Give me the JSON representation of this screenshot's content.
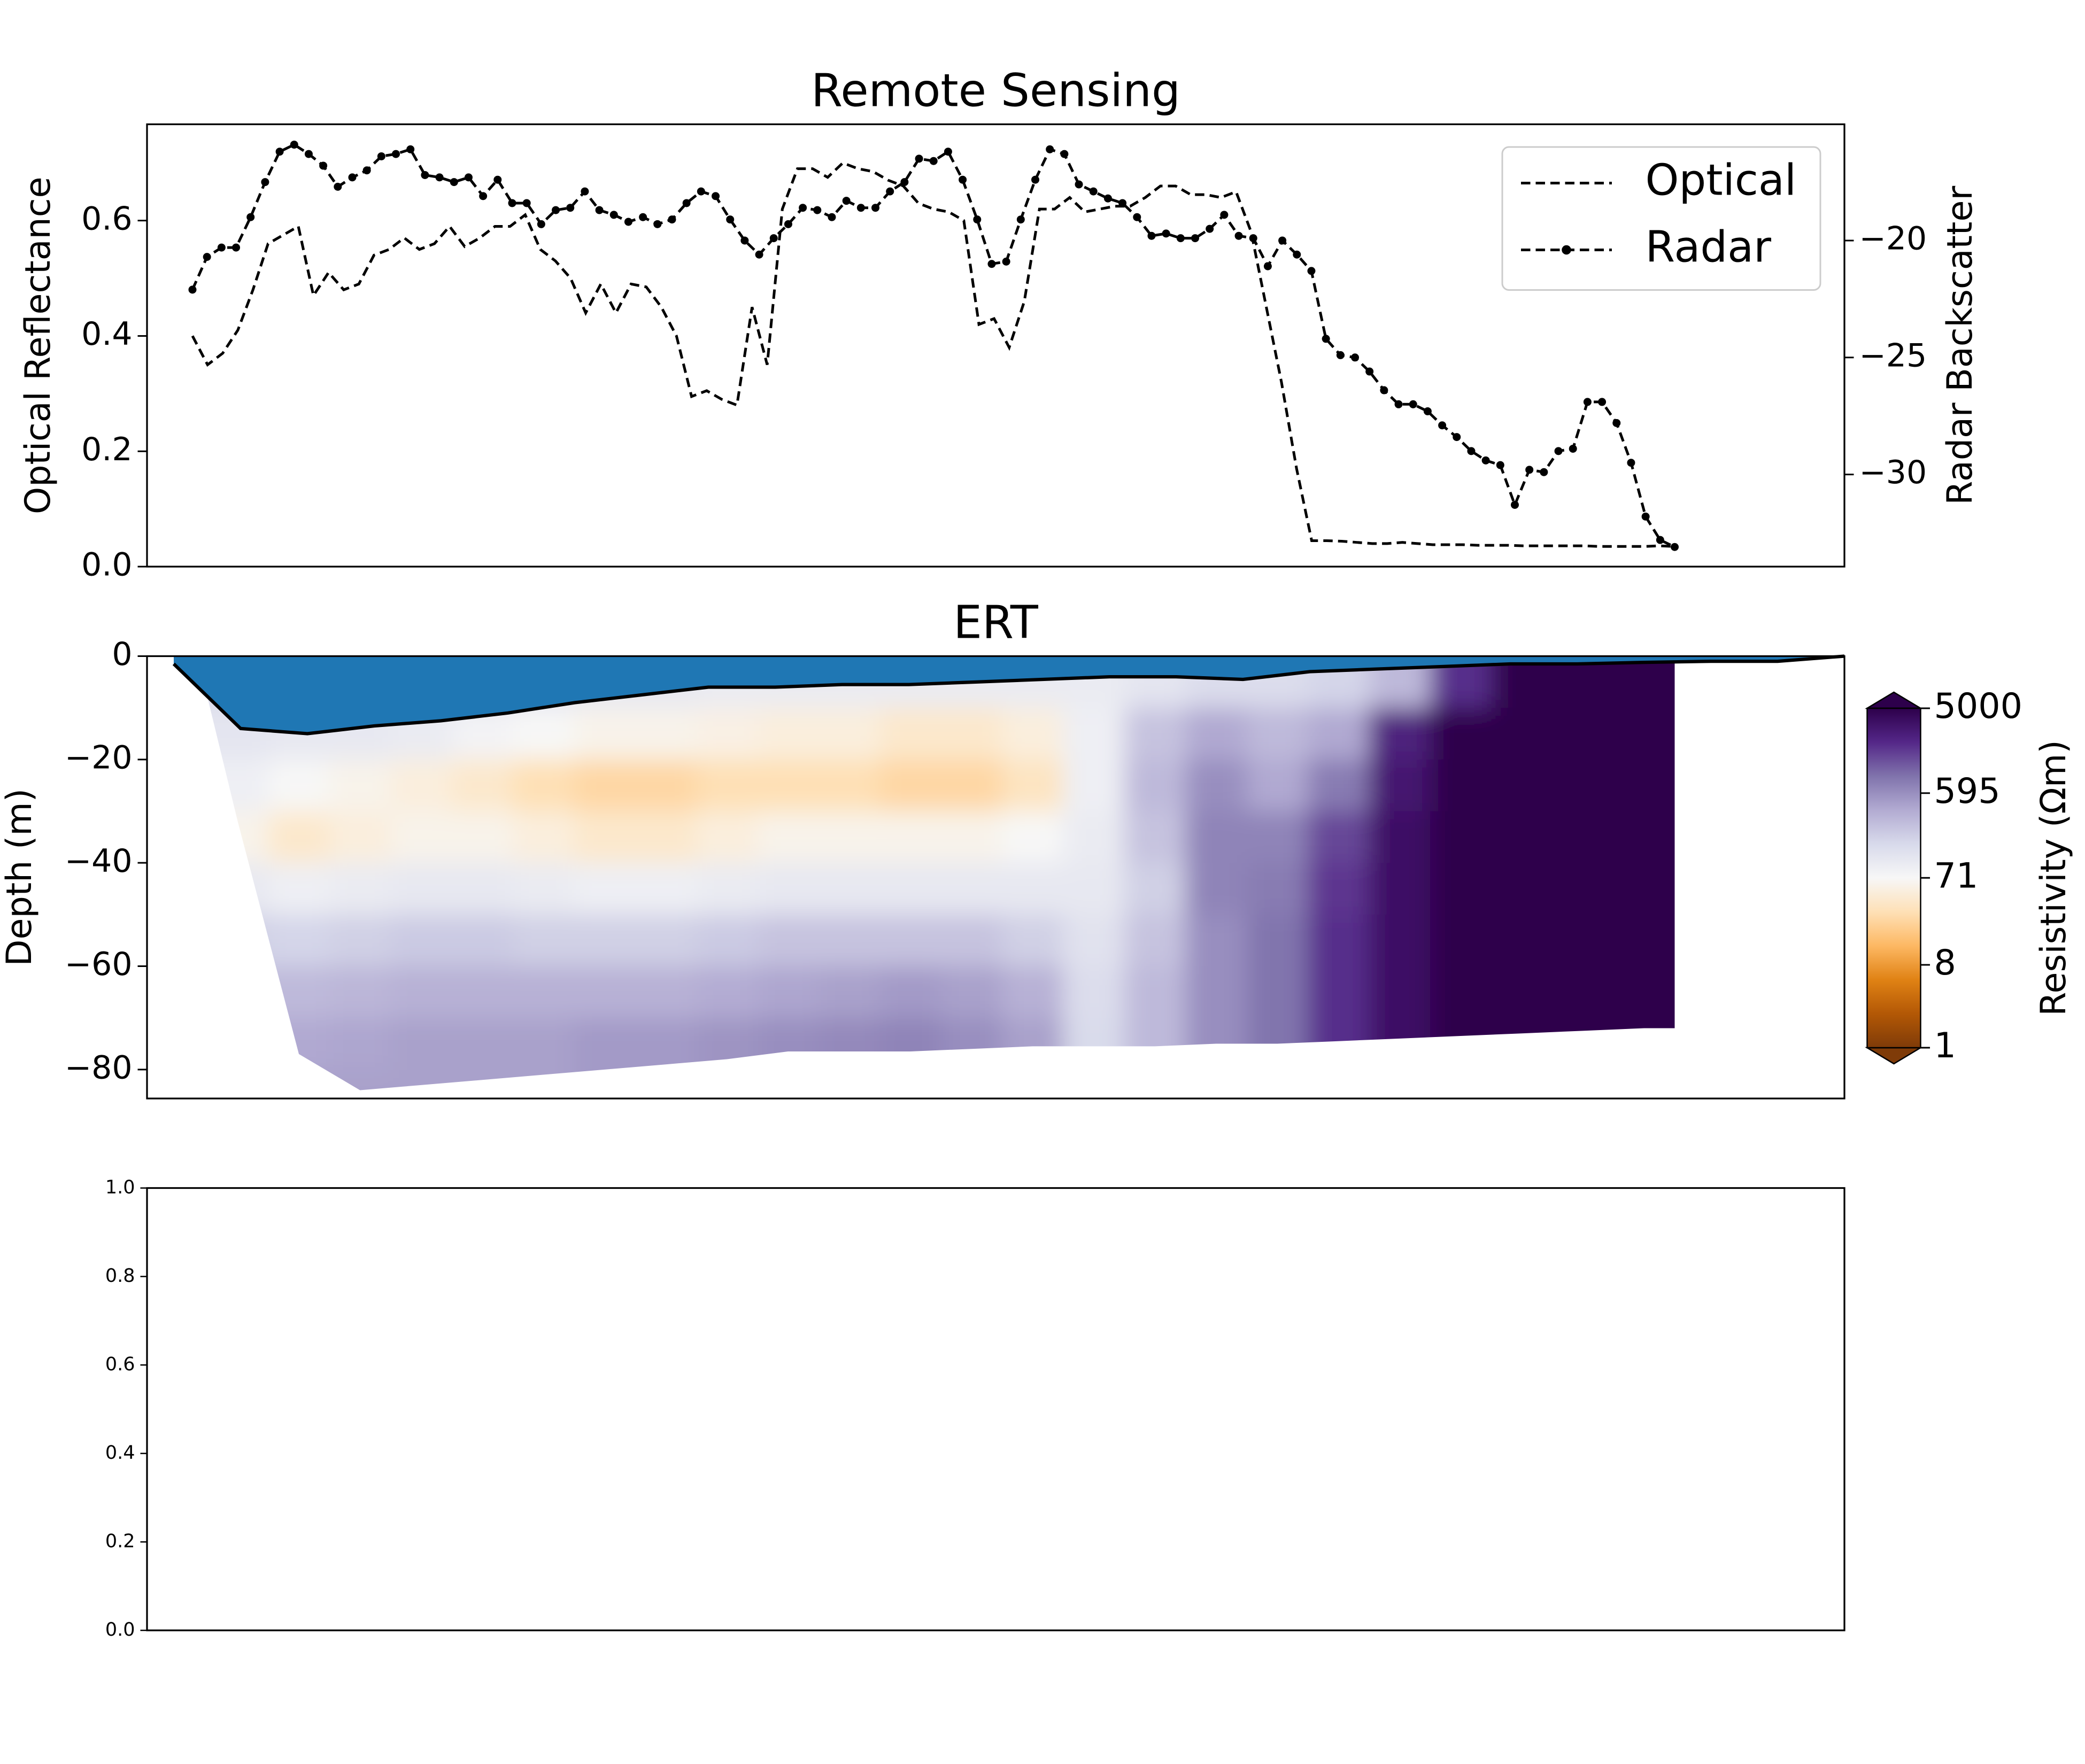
{
  "chart_data": [
    {
      "type": "line",
      "title": "Remote Sensing",
      "ylabel": "Optical Reflectance",
      "y2label": "Radar Backscatter",
      "ylim": [
        0,
        0.767
      ],
      "yticks": [
        {
          "value": 0,
          "label": "0.0"
        },
        0.2,
        0.4,
        0.6
      ],
      "y2lim": [
        -33.94,
        -15.03
      ],
      "y2ticks": [
        {
          "value": -30,
          "label": "−30"
        },
        {
          "value": -25,
          "label": "−25"
        },
        {
          "value": -20,
          "label": "−20"
        }
      ],
      "legend": "upper right",
      "series": [
        {
          "name": "Optical",
          "color": "#000000",
          "style": "dashed",
          "values": [
            0.4,
            0.35,
            0.37,
            0.41,
            0.48,
            0.56,
            0.575,
            0.59,
            0.47,
            0.51,
            0.48,
            0.49,
            0.54,
            0.55,
            0.57,
            0.55,
            0.56,
            0.59,
            0.555,
            0.57,
            0.59,
            0.59,
            0.61,
            0.55,
            0.53,
            0.5,
            0.44,
            0.49,
            0.44,
            0.49,
            0.485,
            0.45,
            0.4,
            0.295,
            0.305,
            0.29,
            0.28,
            0.45,
            0.35,
            0.62,
            0.69,
            0.69,
            0.675,
            0.7,
            0.69,
            0.685,
            0.67,
            0.66,
            0.63,
            0.62,
            0.615,
            0.6,
            0.42,
            0.43,
            0.38,
            0.46,
            0.62,
            0.62,
            0.64,
            0.615,
            0.62,
            0.625,
            0.625,
            0.64,
            0.66,
            0.66,
            0.645,
            0.645,
            0.64,
            0.65,
            0.58,
            0.45,
            0.32,
            0.17,
            0.045,
            0.045,
            0.044,
            0.042,
            0.04,
            0.04,
            0.042,
            0.04,
            0.038,
            0.038,
            0.038,
            0.037,
            0.037,
            0.037,
            0.036,
            0.036,
            0.036,
            0.036,
            0.036,
            0.035,
            0.035,
            0.035,
            0.035,
            0.036,
            0.035
          ]
        },
        {
          "name": "Radar",
          "color": "#000000",
          "style": "dashed",
          "marker": "o",
          "axis": "y2",
          "values": [
            -22.1,
            -20.7,
            -20.3,
            -20.3,
            -19.0,
            -17.5,
            -16.2,
            -15.9,
            -16.3,
            -16.8,
            -17.7,
            -17.3,
            -17.0,
            -16.4,
            -16.3,
            -16.1,
            -17.2,
            -17.3,
            -17.5,
            -17.3,
            -18.1,
            -17.4,
            -18.4,
            -18.4,
            -19.3,
            -18.7,
            -18.6,
            -17.9,
            -18.7,
            -18.9,
            -19.2,
            -19.0,
            -19.3,
            -19.1,
            -18.4,
            -17.9,
            -18.1,
            -19.1,
            -20.0,
            -20.6,
            -19.9,
            -19.3,
            -18.6,
            -18.7,
            -19.0,
            -18.3,
            -18.6,
            -18.6,
            -17.9,
            -17.5,
            -16.5,
            -16.6,
            -16.2,
            -17.4,
            -19.1,
            -21.0,
            -20.9,
            -19.1,
            -17.4,
            -16.1,
            -16.3,
            -17.6,
            -17.9,
            -18.2,
            -18.4,
            -19.0,
            -19.8,
            -19.7,
            -19.9,
            -19.9,
            -19.5,
            -18.9,
            -19.8,
            -19.9,
            -21.1,
            -20.0,
            -20.6,
            -21.3,
            -24.2,
            -24.9,
            -25.0,
            -25.6,
            -26.4,
            -27.0,
            -27.0,
            -27.3,
            -27.9,
            -28.4,
            -29.0,
            -29.4,
            -29.6,
            -31.3,
            -29.8,
            -29.9,
            -29.0,
            -28.9,
            -26.9,
            -26.9,
            -27.8,
            -29.5,
            -31.8,
            -32.8,
            -33.1
          ]
        }
      ]
    },
    {
      "type": "heatmap",
      "title": "ERT",
      "ylabel": "Depth (m)",
      "ylim": [
        -85.6,
        0
      ],
      "yticks": [
        {
          "value": -80,
          "label": "−80"
        },
        {
          "value": -60,
          "label": "−60"
        },
        {
          "value": -40,
          "label": "−40"
        },
        {
          "value": -20,
          "label": "−20"
        },
        0
      ],
      "colormap": "PuOr",
      "water_color": "#1f77b4",
      "water_depth": [
        -1.5,
        -14,
        -15,
        -13.5,
        -12.5,
        -11,
        -9,
        -7.5,
        -6,
        -6,
        -5.5,
        -5.5,
        -5,
        -4.5,
        -4,
        -4,
        -4.5,
        -3,
        -2.5,
        -2,
        -1.5,
        -1.5,
        -1.2,
        -1,
        -1,
        0
      ],
      "bottom_depth": [
        -32,
        -77,
        -84,
        -83,
        -82,
        -81,
        -80,
        -79,
        -78,
        -76.5,
        -76.5,
        -76.5,
        -76,
        -75.5,
        -75.5,
        -75.5,
        -75,
        -75,
        -74.5,
        -74,
        -73.5,
        -73,
        -72.5,
        -72
      ],
      "depth_bins": [
        0,
        -10,
        -20,
        -30,
        -40,
        -50,
        -60,
        -70,
        -80,
        -90
      ],
      "z": [
        [
          150,
          120,
          90,
          60,
          110,
          200,
          300,
          400,
          450
        ],
        [
          150,
          110,
          70,
          40,
          90,
          180,
          300,
          400,
          450
        ],
        [
          150,
          110,
          60,
          50,
          100,
          200,
          320,
          420,
          450
        ],
        [
          140,
          100,
          50,
          60,
          110,
          220,
          350,
          450,
          450
        ],
        [
          130,
          80,
          40,
          60,
          110,
          220,
          350,
          450,
          450
        ],
        [
          120,
          70,
          30,
          50,
          100,
          200,
          350,
          450,
          450
        ],
        [
          110,
          60,
          25,
          40,
          90,
          200,
          350,
          500,
          500
        ],
        [
          110,
          60,
          25,
          40,
          90,
          200,
          350,
          500,
          500
        ],
        [
          100,
          55,
          30,
          50,
          100,
          220,
          380,
          550,
          550
        ],
        [
          100,
          50,
          30,
          60,
          110,
          250,
          420,
          600,
          600
        ],
        [
          100,
          50,
          30,
          60,
          110,
          250,
          450,
          650,
          650
        ],
        [
          100,
          40,
          25,
          60,
          110,
          250,
          500,
          700,
          700
        ],
        [
          100,
          40,
          25,
          60,
          110,
          250,
          450,
          600,
          600
        ],
        [
          100,
          50,
          35,
          70,
          110,
          200,
          350,
          450,
          450
        ],
        [
          100,
          90,
          90,
          100,
          110,
          130,
          150,
          160,
          160
        ],
        [
          120,
          250,
          300,
          250,
          200,
          250,
          300,
          300,
          300
        ],
        [
          150,
          400,
          600,
          700,
          700,
          600,
          600,
          600,
          600
        ],
        [
          150,
          300,
          400,
          700,
          800,
          900,
          900,
          900,
          900
        ],
        [
          180,
          400,
          800,
          1500,
          1800,
          2000,
          2000,
          2000,
          2000
        ],
        [
          300,
          2500,
          3000,
          3500,
          3500,
          3500,
          3500,
          3500,
          3500
        ],
        [
          2000,
          5000,
          5000,
          5000,
          5000,
          5000,
          5000,
          5000,
          5000
        ],
        [
          6000,
          6000,
          6000,
          6000,
          6000,
          6000,
          6000,
          6000,
          6000
        ],
        [
          6000,
          6000,
          6000,
          6000,
          6000,
          6000,
          6000,
          6000,
          6000
        ],
        [
          6000,
          6000,
          6000,
          6000,
          6000,
          6000,
          6000,
          6000,
          6000
        ]
      ],
      "colorbar": {
        "label": "Resistivity (Ωm)",
        "lim": [
          1,
          5000
        ],
        "log": true,
        "ticks": [
          1,
          8,
          71,
          595,
          5000
        ]
      }
    },
    {
      "type": "empty",
      "ylim": [
        0,
        1
      ],
      "yticks": [
        {
          "value": 0,
          "label": "0.0"
        },
        0.2,
        0.4,
        0.6,
        0.8,
        {
          "value": 1,
          "label": "1.0"
        }
      ]
    }
  ]
}
